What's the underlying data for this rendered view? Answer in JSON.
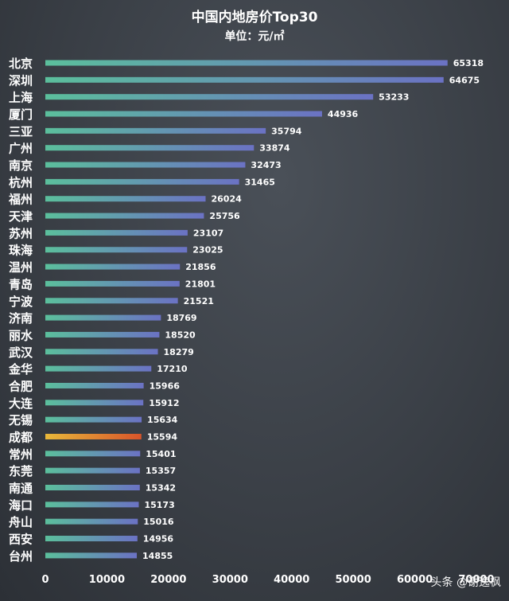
{
  "chart_data": {
    "type": "bar",
    "orientation": "horizontal",
    "title": "中国内地房价Top30",
    "subtitle": "单位：元/㎡",
    "categories": [
      "北京",
      "深圳",
      "上海",
      "厦门",
      "三亚",
      "广州",
      "南京",
      "杭州",
      "福州",
      "天津",
      "苏州",
      "珠海",
      "温州",
      "青岛",
      "宁波",
      "济南",
      "丽水",
      "武汉",
      "金华",
      "合肥",
      "大连",
      "无锡",
      "成都",
      "常州",
      "东莞",
      "南通",
      "海口",
      "舟山",
      "西安",
      "台州"
    ],
    "values": [
      65318,
      64675,
      53233,
      44936,
      35794,
      33874,
      32473,
      31465,
      26024,
      25756,
      23107,
      23025,
      21856,
      21801,
      21521,
      18769,
      18520,
      18279,
      17210,
      15966,
      15912,
      15634,
      15594,
      15401,
      15357,
      15342,
      15173,
      15016,
      14956,
      14855
    ],
    "highlight": "成都",
    "xlim": [
      0,
      70000
    ],
    "xticks": [
      0,
      10000,
      20000,
      30000,
      40000,
      50000,
      60000,
      70000
    ],
    "xlabel": "",
    "ylabel": "",
    "grid": false,
    "colors": {
      "bar_start": "#5bbf9c",
      "bar_end": "#6b72c4",
      "highlight_start": "#e8b83a",
      "highlight_end": "#d8542a"
    }
  },
  "watermark": "头条 @谢逸枫"
}
